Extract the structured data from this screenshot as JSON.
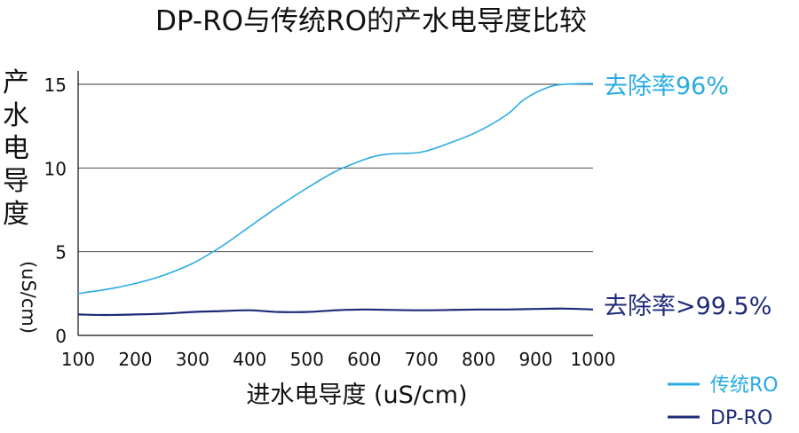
{
  "chart_data": {
    "type": "line",
    "title": "DP-RO与传统RO的产水电导度比较",
    "xlabel": "进水电导度 (uS/cm)",
    "ylabel_cjk": [
      "产",
      "水",
      "电",
      "导",
      "度"
    ],
    "ylabel_unit": "(uS/cm)",
    "x_ticks": [
      100,
      200,
      300,
      400,
      500,
      600,
      700,
      800,
      900,
      1000
    ],
    "y_ticks": [
      0,
      5,
      10,
      15
    ],
    "xlim": [
      100,
      1000
    ],
    "ylim": [
      0,
      15
    ],
    "grid": "horizontal",
    "legend_position": "bottom-right",
    "series": [
      {
        "name": "传统RO",
        "color": "#29ABE2",
        "annotation": "去除率96%",
        "points": [
          [
            100,
            2.5
          ],
          [
            150,
            2.75
          ],
          [
            200,
            3.1
          ],
          [
            250,
            3.6
          ],
          [
            300,
            4.3
          ],
          [
            350,
            5.3
          ],
          [
            400,
            6.5
          ],
          [
            450,
            7.7
          ],
          [
            500,
            8.8
          ],
          [
            550,
            9.8
          ],
          [
            600,
            10.5
          ],
          [
            625,
            10.75
          ],
          [
            650,
            10.85
          ],
          [
            700,
            10.95
          ],
          [
            750,
            11.5
          ],
          [
            800,
            12.2
          ],
          [
            850,
            13.2
          ],
          [
            880,
            14.1
          ],
          [
            920,
            14.8
          ],
          [
            950,
            15.0
          ],
          [
            1000,
            15.05
          ]
        ]
      },
      {
        "name": "DP-RO",
        "color": "#1E2A78",
        "annotation": "去除率>99.5%",
        "points": [
          [
            100,
            1.25
          ],
          [
            150,
            1.22
          ],
          [
            200,
            1.25
          ],
          [
            250,
            1.3
          ],
          [
            300,
            1.4
          ],
          [
            350,
            1.45
          ],
          [
            400,
            1.5
          ],
          [
            450,
            1.4
          ],
          [
            500,
            1.4
          ],
          [
            550,
            1.5
          ],
          [
            600,
            1.55
          ],
          [
            650,
            1.52
          ],
          [
            700,
            1.5
          ],
          [
            750,
            1.52
          ],
          [
            800,
            1.55
          ],
          [
            850,
            1.55
          ],
          [
            900,
            1.58
          ],
          [
            950,
            1.6
          ],
          [
            1000,
            1.55
          ]
        ]
      }
    ]
  }
}
